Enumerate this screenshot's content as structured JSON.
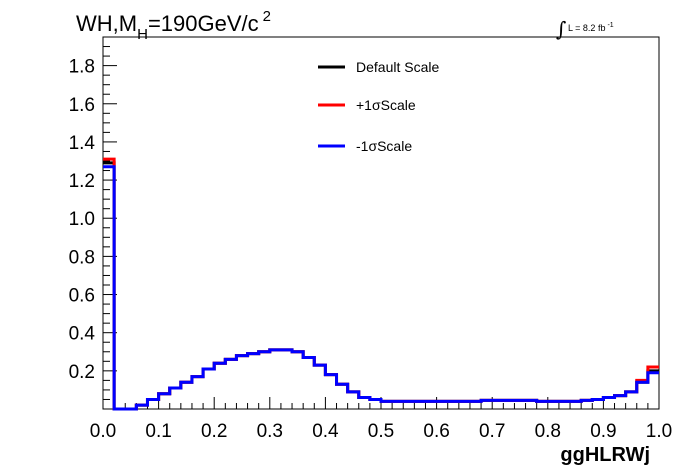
{
  "chart_data": {
    "type": "line",
    "title": "WH,M_{H}=190GeV/c^{2}",
    "title_parts": {
      "main": "WH,M",
      "sub": "H",
      "rest": "=190GeV/c",
      "sup": "2"
    },
    "annotation": {
      "integral": "∫",
      "text": "L = 8.2 fb",
      "sup": "-1"
    },
    "xlabel": "ggHLRWj",
    "ylabel": "",
    "xlim": [
      0.0,
      1.0
    ],
    "ylim": [
      0.0,
      1.95
    ],
    "xticks": [
      "0.0",
      "0.1",
      "0.2",
      "0.3",
      "0.4",
      "0.5",
      "0.6",
      "0.7",
      "0.8",
      "0.9",
      "1.0"
    ],
    "yticks": [
      "0.2",
      "0.4",
      "0.6",
      "0.8",
      "1.0",
      "1.2",
      "1.4",
      "1.6",
      "1.8"
    ],
    "grid": false,
    "legend_position": "top-center",
    "bin_width": 0.02,
    "x": [
      0.0,
      0.02,
      0.04,
      0.06,
      0.08,
      0.1,
      0.12,
      0.14,
      0.16,
      0.18,
      0.2,
      0.22,
      0.24,
      0.26,
      0.28,
      0.3,
      0.32,
      0.34,
      0.36,
      0.38,
      0.4,
      0.42,
      0.44,
      0.46,
      0.48,
      0.5,
      0.52,
      0.54,
      0.56,
      0.58,
      0.6,
      0.62,
      0.64,
      0.66,
      0.68,
      0.7,
      0.72,
      0.74,
      0.76,
      0.78,
      0.8,
      0.82,
      0.84,
      0.86,
      0.88,
      0.9,
      0.92,
      0.94,
      0.96,
      0.98
    ],
    "series": [
      {
        "name": "Default Scale",
        "color": "#000000",
        "values": [
          1.29,
          0.0,
          0.0,
          0.02,
          0.05,
          0.08,
          0.11,
          0.14,
          0.17,
          0.21,
          0.24,
          0.26,
          0.28,
          0.29,
          0.3,
          0.31,
          0.31,
          0.3,
          0.27,
          0.23,
          0.18,
          0.13,
          0.09,
          0.06,
          0.05,
          0.04,
          0.04,
          0.04,
          0.04,
          0.04,
          0.04,
          0.04,
          0.04,
          0.04,
          0.045,
          0.045,
          0.045,
          0.045,
          0.045,
          0.04,
          0.04,
          0.04,
          0.04,
          0.045,
          0.05,
          0.06,
          0.07,
          0.09,
          0.14,
          0.2
        ]
      },
      {
        "name": "+1σScale",
        "color": "#ff0000",
        "values": [
          1.31,
          0.0,
          0.0,
          0.02,
          0.05,
          0.08,
          0.11,
          0.14,
          0.17,
          0.21,
          0.24,
          0.26,
          0.28,
          0.29,
          0.3,
          0.31,
          0.31,
          0.3,
          0.27,
          0.23,
          0.18,
          0.13,
          0.09,
          0.06,
          0.05,
          0.04,
          0.04,
          0.04,
          0.04,
          0.04,
          0.04,
          0.04,
          0.04,
          0.04,
          0.045,
          0.045,
          0.045,
          0.045,
          0.045,
          0.04,
          0.04,
          0.04,
          0.04,
          0.045,
          0.05,
          0.06,
          0.07,
          0.09,
          0.15,
          0.22
        ]
      },
      {
        "name": "-1σScale",
        "color": "#0000ff",
        "values": [
          1.27,
          0.0,
          0.0,
          0.02,
          0.05,
          0.08,
          0.11,
          0.14,
          0.17,
          0.21,
          0.24,
          0.26,
          0.28,
          0.29,
          0.3,
          0.31,
          0.31,
          0.3,
          0.27,
          0.23,
          0.18,
          0.13,
          0.09,
          0.06,
          0.05,
          0.04,
          0.04,
          0.04,
          0.04,
          0.04,
          0.04,
          0.04,
          0.04,
          0.04,
          0.045,
          0.045,
          0.045,
          0.045,
          0.045,
          0.04,
          0.04,
          0.04,
          0.04,
          0.045,
          0.05,
          0.06,
          0.07,
          0.09,
          0.14,
          0.19
        ]
      }
    ]
  }
}
